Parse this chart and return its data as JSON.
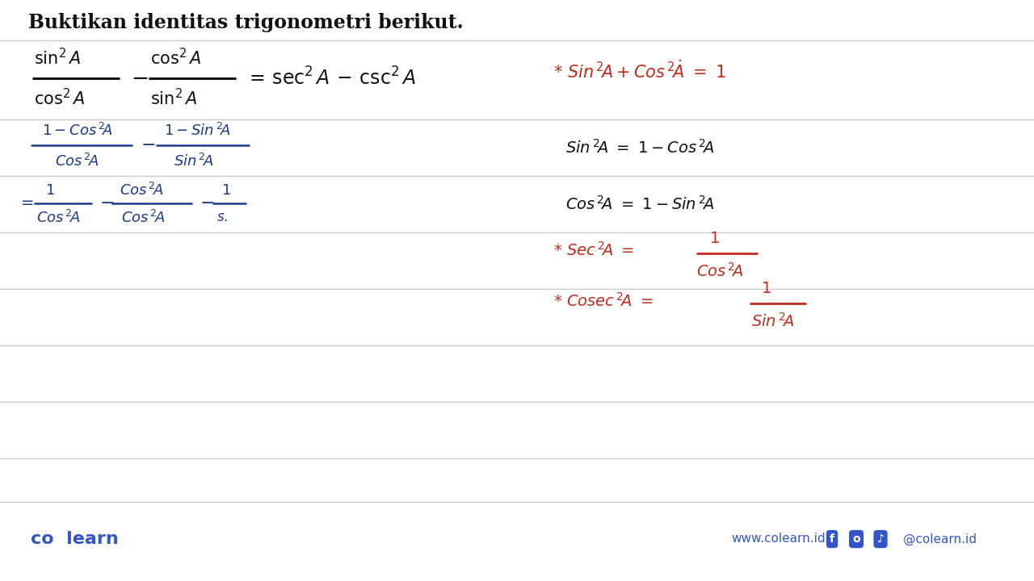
{
  "bg_color": "#ffffff",
  "line_color": "#c8c8c8",
  "black": "#111111",
  "blue": "#1a3a8c",
  "red": "#c42b1c",
  "footer_blue": "#3355cc",
  "ruled_lines_y": [
    50,
    148,
    218,
    288,
    358,
    428,
    498,
    568,
    622
  ],
  "title": "Buktikan identitas trigonometri berikut.",
  "title_fs": 17,
  "footer_left": "co  learn",
  "footer_right": "www.colearn.id",
  "footer_social": "@colearn.id"
}
